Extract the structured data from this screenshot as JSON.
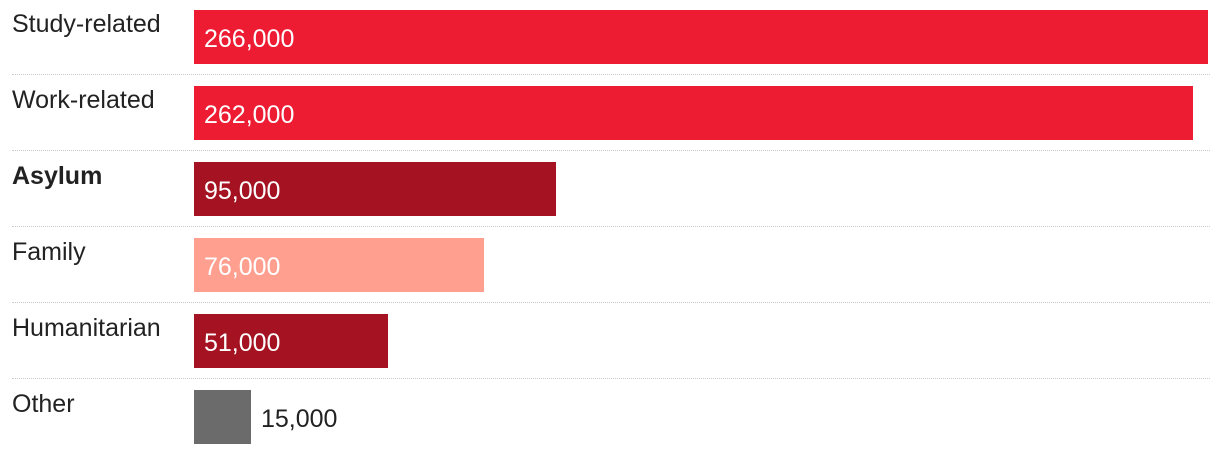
{
  "chart_data": {
    "type": "bar",
    "orientation": "horizontal",
    "categories": [
      "Study-related",
      "Work-related",
      "Asylum",
      "Family",
      "Humanitarian",
      "Other"
    ],
    "values": [
      266000,
      262000,
      95000,
      76000,
      51000,
      15000
    ],
    "value_labels": [
      "266,000",
      "262,000",
      "95,000",
      "76,000",
      "51,000",
      "15,000"
    ],
    "bar_colors": [
      "#ed1c33",
      "#ed1c33",
      "#a51221",
      "#ff9f8f",
      "#a51221",
      "#6b6b6b"
    ],
    "highlighted_category": "Asylum",
    "xlim": [
      0,
      266000
    ],
    "grid": false,
    "legend": "none"
  }
}
